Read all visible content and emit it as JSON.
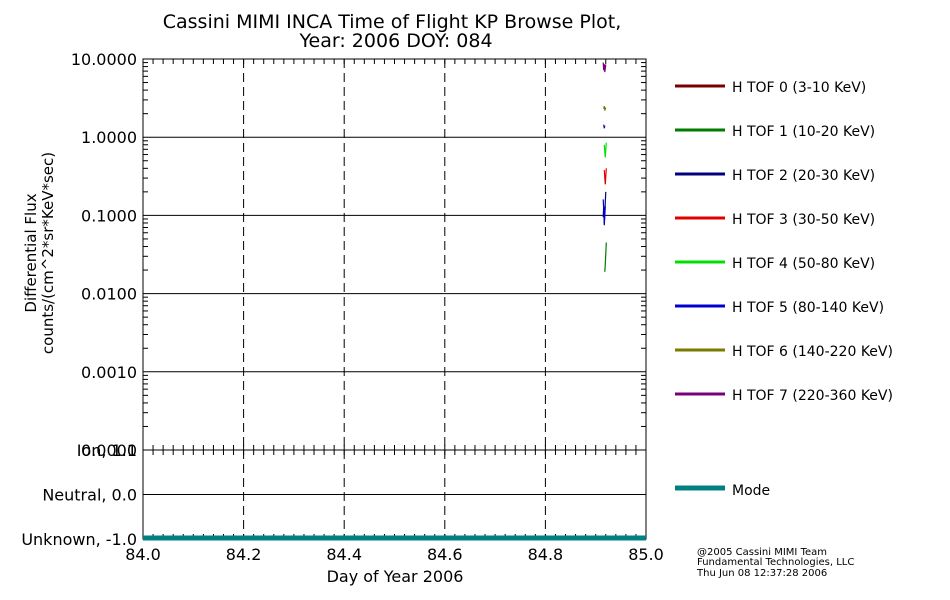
{
  "chart_data": [
    {
      "type": "line",
      "title": "Cassini MIMI INCA Time of Flight KP Browse Plot,",
      "subtitle": "Year: 2006 DOY: 084",
      "ylabel_line1": "Differential Flux",
      "ylabel_line2": "counts/(cm^2*sr*KeV*sec)",
      "yscale": "log",
      "ylim": [
        0.0001,
        10
      ],
      "xlim": [
        84.0,
        85.0
      ],
      "ytick_labels": [
        "10.0000",
        "1.0000",
        "0.1000",
        "0.0100",
        "0.0010",
        "0.0001"
      ],
      "ytick_values": [
        10,
        1,
        0.1,
        0.01,
        0.001,
        0.0001
      ],
      "grid": true,
      "legend_placement": "right",
      "series": [
        {
          "name": "H TOF 0 (3-10 KeV)",
          "color": "#7a0000",
          "x": [],
          "y": []
        },
        {
          "name": "H TOF 1 (10-20 KeV)",
          "color": "#007a00",
          "x": [
            84.918,
            84.919,
            84.92,
            84.921
          ],
          "y": [
            0.019,
            0.024,
            0.033,
            0.045
          ]
        },
        {
          "name": "H TOF 2 (20-30 KeV)",
          "color": "#00007a",
          "x": [
            84.915,
            84.916,
            84.917,
            84.918,
            84.919,
            84.92
          ],
          "y": [
            0.095,
            0.13,
            0.075,
            0.11,
            0.15,
            0.2
          ]
        },
        {
          "name": "H TOF 3 (30-50 KeV)",
          "color": "#e00000",
          "x": [
            84.917,
            84.918,
            84.919,
            84.92,
            84.921
          ],
          "y": [
            0.38,
            0.3,
            0.25,
            0.32,
            0.4
          ]
        },
        {
          "name": "H TOF 4 (50-80 KeV)",
          "color": "#00e000",
          "x": [
            84.917,
            84.918,
            84.919,
            84.92,
            84.921
          ],
          "y": [
            0.8,
            0.65,
            0.55,
            0.7,
            0.85
          ]
        },
        {
          "name": "H TOF 5 (80-140 KeV)",
          "color": "#0000d0",
          "x": [
            84.915,
            84.916,
            84.917,
            84.918,
            84.919
          ],
          "y": [
            0.16,
            0.12,
            0.08,
            0.1,
            0.13
          ]
        },
        {
          "name": "H TOF 6 (140-220 KeV)",
          "color": "#7a7a00",
          "x": [
            84.916,
            84.917,
            84.918,
            84.919,
            84.92
          ],
          "y": [
            2.3,
            2.5,
            2.2,
            2.3,
            2.4
          ]
        },
        {
          "name": "H TOF 7 (220-360 KeV)",
          "color": "#7a007a",
          "x": [
            84.915,
            84.916,
            84.917,
            84.918,
            84.919,
            84.92
          ],
          "y": [
            9.0,
            7.2,
            8.6,
            6.8,
            7.6,
            8.5
          ]
        },
        {
          "name": "H TOF 2 blue marks",
          "color": "#1010a0",
          "x": [
            84.916,
            84.917,
            84.918
          ],
          "y": [
            1.45,
            1.3,
            1.4
          ],
          "hide_legend": true
        }
      ]
    },
    {
      "type": "line",
      "ytick_labels": [
        "Ion, 1.0",
        "Neutral, 0.0",
        "Unknown, -1.0"
      ],
      "ytick_values": [
        1.0,
        0.0,
        -1.0
      ],
      "ylim": [
        -1.0,
        1.0
      ],
      "xlim": [
        84.0,
        85.0
      ],
      "xlabel": "Day of Year 2006",
      "xtick_labels": [
        "84.0",
        "84.2",
        "84.4",
        "84.6",
        "84.8",
        "85.0"
      ],
      "xtick_values": [
        84.0,
        84.2,
        84.4,
        84.6,
        84.8,
        85.0
      ],
      "grid": true,
      "series": [
        {
          "name": "Mode",
          "color": "#008080",
          "x": [
            84.0,
            85.0
          ],
          "y": [
            -1.0,
            -1.0
          ]
        }
      ]
    }
  ],
  "footer": {
    "line1": "@2005 Cassini MIMI Team",
    "line2": "Fundamental Technologies, LLC",
    "line3": "Thu Jun 08 12:37:28 2006"
  }
}
